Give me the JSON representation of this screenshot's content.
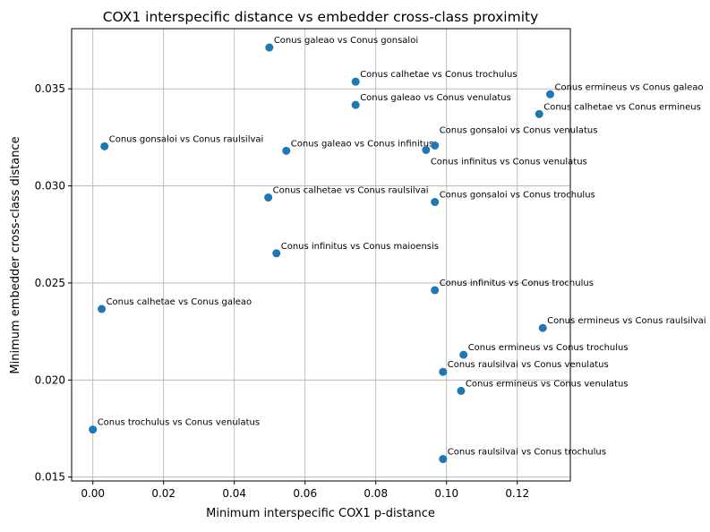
{
  "chart_data": {
    "type": "scatter",
    "title": "COX1 interspecific distance vs embedder cross-class proximity",
    "xlabel": "Minimum interspecific COX1 p-distance",
    "ylabel": "Minimum embedder cross-class distance",
    "xlim": [
      -0.006,
      0.135
    ],
    "ylim": [
      0.0148,
      0.0381
    ],
    "xticks": [
      "0.00",
      "0.02",
      "0.04",
      "0.06",
      "0.08",
      "0.10",
      "0.12"
    ],
    "yticks": [
      "0.015",
      "0.020",
      "0.025",
      "0.030",
      "0.035"
    ],
    "grid": true,
    "marker_color": "#1f77b4",
    "points": [
      {
        "x": 0.0499,
        "y": 0.03713,
        "label": "Conus galeao vs Conus gonsaloi"
      },
      {
        "x": 0.0743,
        "y": 0.03537,
        "label": "Conus calhetae vs Conus trochulus"
      },
      {
        "x": 0.1293,
        "y": 0.03472,
        "label": "Conus ermineus vs Conus galeao"
      },
      {
        "x": 0.0743,
        "y": 0.03417,
        "label": "Conus galeao vs Conus venulatus"
      },
      {
        "x": 0.1262,
        "y": 0.0337,
        "label": "Conus calhetae vs Conus ermineus"
      },
      {
        "x": 0.0033,
        "y": 0.03204,
        "label": "Conus gonsaloi vs Conus raulsilvai"
      },
      {
        "x": 0.0547,
        "y": 0.03181,
        "label": "Conus galeao vs Conus infinitus"
      },
      {
        "x": 0.0942,
        "y": 0.03185,
        "label": "Conus infinitus vs Conus venulatus"
      },
      {
        "x": 0.0967,
        "y": 0.03208,
        "label": "Conus gonsaloi vs Conus venulatus"
      },
      {
        "x": 0.0496,
        "y": 0.0294,
        "label": "Conus calhetae vs Conus raulsilvai"
      },
      {
        "x": 0.0967,
        "y": 0.02917,
        "label": "Conus gonsaloi vs Conus trochulus"
      },
      {
        "x": 0.0519,
        "y": 0.02653,
        "label": "Conus infinitus vs Conus maioensis"
      },
      {
        "x": 0.0967,
        "y": 0.02463,
        "label": "Conus infinitus vs Conus trochulus"
      },
      {
        "x": 0.0025,
        "y": 0.02366,
        "label": "Conus calhetae vs Conus galeao"
      },
      {
        "x": 0.1272,
        "y": 0.02268,
        "label": "Conus ermineus vs Conus raulsilvai"
      },
      {
        "x": 0.1048,
        "y": 0.0213,
        "label": "Conus ermineus vs Conus trochulus"
      },
      {
        "x": 0.099,
        "y": 0.02042,
        "label": "Conus raulsilvai vs Conus venulatus"
      },
      {
        "x": 0.1041,
        "y": 0.01944,
        "label": "Conus ermineus vs Conus venulatus"
      },
      {
        "x": 0.0,
        "y": 0.01745,
        "label": "Conus trochulus vs Conus venulatus"
      },
      {
        "x": 0.099,
        "y": 0.01593,
        "label": "Conus raulsilvai vs Conus trochulus"
      }
    ]
  }
}
